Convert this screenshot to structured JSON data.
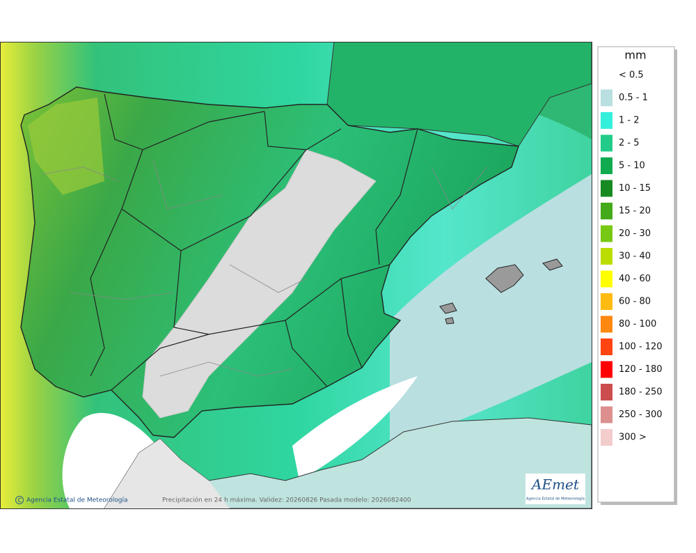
{
  "legend": {
    "title": "mm",
    "items": [
      {
        "label": "< 0.5",
        "color": "#ffffff"
      },
      {
        "label": "0.5 - 1",
        "color": "#b9dfe0"
      },
      {
        "label": "1 - 2",
        "color": "#33efdc"
      },
      {
        "label": "2 - 5",
        "color": "#22cc88"
      },
      {
        "label": "5 - 10",
        "color": "#11aa4e"
      },
      {
        "label": "10 - 15",
        "color": "#178a22"
      },
      {
        "label": "15 - 20",
        "color": "#44aa1a"
      },
      {
        "label": "20 - 30",
        "color": "#77c812"
      },
      {
        "label": "30 - 40",
        "color": "#bbdd00"
      },
      {
        "label": "40 - 60",
        "color": "#ffff00"
      },
      {
        "label": "60 - 80",
        "color": "#ffbb11"
      },
      {
        "label": "80 - 100",
        "color": "#ff8811"
      },
      {
        "label": "100 - 120",
        "color": "#ff4411"
      },
      {
        "label": "120 - 180",
        "color": "#ff0000"
      },
      {
        "label": "180 - 250",
        "color": "#cc4d4d"
      },
      {
        "label": "250 - 300",
        "color": "#dd8f8f"
      },
      {
        "label": "300 >",
        "color": "#f3cccc"
      }
    ]
  },
  "footer": {
    "credit": "Agencia Estatal de Meteorología",
    "caption": "Precipitación en 24 h máxima. Validez: 20260826 Pasada modelo: 2026082400"
  },
  "logo": {
    "name": "AEmet",
    "subtitle": "Agencia Estatal de Meteorología"
  }
}
